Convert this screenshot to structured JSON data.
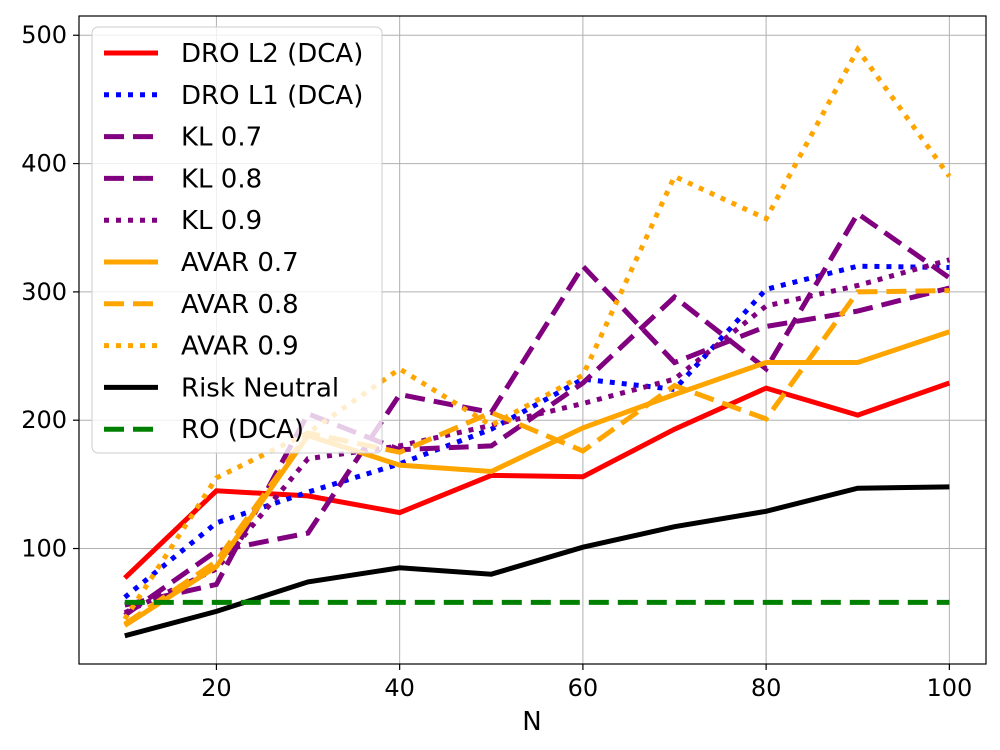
{
  "chart_data": {
    "type": "line",
    "xlabel": "N",
    "ylabel": "",
    "title": "",
    "xlim": [
      5,
      104
    ],
    "ylim": [
      10,
      515
    ],
    "x_ticks": [
      20,
      40,
      60,
      80,
      100
    ],
    "y_ticks": [
      100,
      200,
      300,
      400,
      500
    ],
    "grid": true,
    "legend_position": "upper-left",
    "x": [
      10,
      20,
      30,
      40,
      50,
      60,
      70,
      80,
      90,
      100
    ],
    "series": [
      {
        "name": "DRO L2 (DCA)",
        "color": "#ff0000",
        "dash": "solid",
        "values": [
          77,
          145,
          141,
          128,
          157,
          156,
          193,
          225,
          204,
          229
        ]
      },
      {
        "name": "DRO L1 (DCA)",
        "color": "#0000ff",
        "dash": "dotted",
        "values": [
          62,
          120,
          144,
          166,
          193,
          232,
          224,
          302,
          320,
          319
        ]
      },
      {
        "name": "KL 0.7",
        "color": "#800080",
        "dash": "dashed",
        "values": [
          48,
          98,
          112,
          220,
          206,
          320,
          245,
          273,
          285,
          303
        ]
      },
      {
        "name": "KL 0.8",
        "color": "#800080",
        "dash": "dashed",
        "values": [
          56,
          72,
          205,
          177,
          180,
          229,
          296,
          240,
          361,
          311
        ]
      },
      {
        "name": "KL 0.9",
        "color": "#800080",
        "dash": "dotted",
        "values": [
          50,
          84,
          170,
          180,
          196,
          213,
          232,
          289,
          305,
          325
        ]
      },
      {
        "name": "AVAR 0.7",
        "color": "#ffa500",
        "dash": "solid",
        "values": [
          40,
          86,
          188,
          165,
          160,
          194,
          220,
          245,
          245,
          269
        ]
      },
      {
        "name": "AVAR 0.8",
        "color": "#ffa500",
        "dash": "dashed",
        "values": [
          41,
          90,
          190,
          175,
          206,
          176,
          227,
          201,
          300,
          301
        ]
      },
      {
        "name": "AVAR 0.9",
        "color": "#ffa500",
        "dash": "dotted",
        "values": [
          45,
          155,
          190,
          240,
          196,
          235,
          390,
          357,
          489,
          390
        ]
      },
      {
        "name": "Risk Neutral",
        "color": "#000000",
        "dash": "solid",
        "values": [
          32,
          51,
          74,
          85,
          80,
          101,
          117,
          129,
          147,
          148
        ]
      },
      {
        "name": "RO (DCA)",
        "color": "#008000",
        "dash": "dashed",
        "values": [
          58,
          58,
          58,
          58,
          58,
          58,
          58,
          58,
          58,
          58
        ]
      }
    ]
  }
}
